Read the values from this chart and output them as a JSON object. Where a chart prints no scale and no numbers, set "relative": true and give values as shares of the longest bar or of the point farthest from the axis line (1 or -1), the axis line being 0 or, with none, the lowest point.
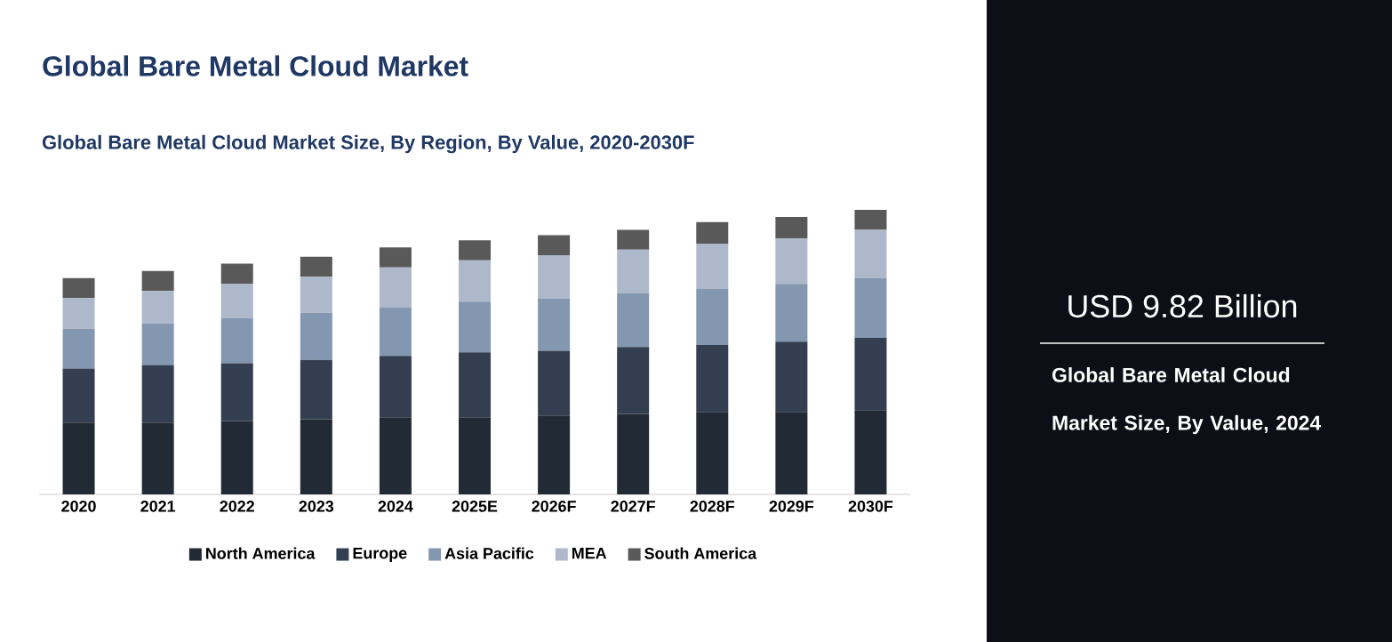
{
  "chart_data": {
    "type": "bar",
    "stacked": true,
    "relative": true,
    "title": "Global Bare Metal Cloud Market",
    "subtitle": "Global Bare Metal Cloud Market Size, By Region, By Value, 2020-2030F",
    "categories": [
      "2020",
      "2021",
      "2022",
      "2023",
      "2024",
      "2025E",
      "2026F",
      "2027F",
      "2028F",
      "2029F",
      "2030F"
    ],
    "series": [
      {
        "name": "North America",
        "color": "#222a35",
        "values": [
          0.252,
          0.252,
          0.258,
          0.264,
          0.271,
          0.271,
          0.277,
          0.283,
          0.29,
          0.29,
          0.296
        ]
      },
      {
        "name": "Europe",
        "color": "#333f50",
        "values": [
          0.19,
          0.203,
          0.203,
          0.209,
          0.216,
          0.228,
          0.228,
          0.235,
          0.235,
          0.247,
          0.254
        ]
      },
      {
        "name": "Asia Pacific",
        "color": "#8497b0",
        "values": [
          0.14,
          0.146,
          0.159,
          0.165,
          0.171,
          0.178,
          0.184,
          0.19,
          0.197,
          0.203,
          0.209
        ]
      },
      {
        "name": "MEA",
        "color": "#adb9ca",
        "values": [
          0.108,
          0.114,
          0.121,
          0.127,
          0.14,
          0.146,
          0.152,
          0.152,
          0.159,
          0.159,
          0.171
        ]
      },
      {
        "name": "South America",
        "color": "#595959",
        "values": [
          0.07,
          0.07,
          0.07,
          0.07,
          0.07,
          0.07,
          0.07,
          0.07,
          0.076,
          0.076,
          0.07
        ]
      }
    ],
    "legend": "bottom",
    "annotations": [
      "USD 9.82 Billion",
      "Global Bare Metal Cloud Market Size, By Value, 2024"
    ]
  }
}
